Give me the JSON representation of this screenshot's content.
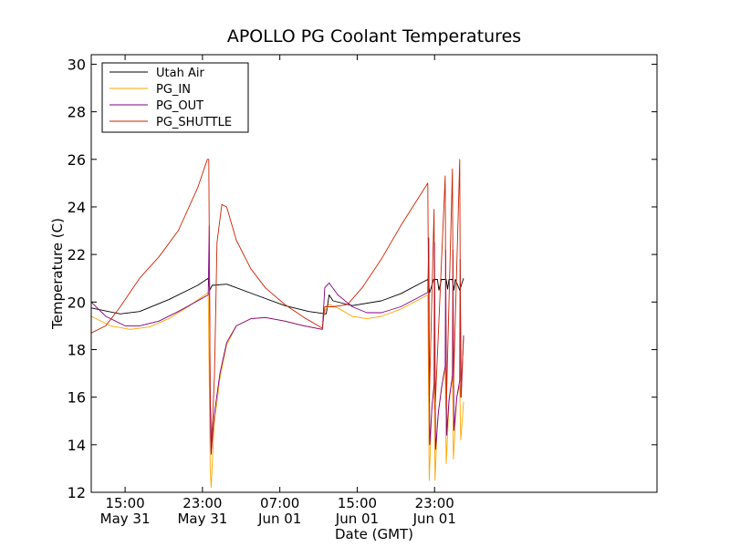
{
  "chart_data": {
    "type": "line",
    "title": "APOLLO PG Coolant Temperatures",
    "xlabel": "Date (GMT)",
    "ylabel": "Temperature (C)",
    "ylim": [
      12,
      30.4
    ],
    "xlim_hours": [
      0,
      58.5
    ],
    "x_unit": "hours since 11:30 May 31 (GMT)",
    "x_ticks": [
      {
        "x": 3.5,
        "time": "15:00",
        "date": "May 31"
      },
      {
        "x": 11.5,
        "time": "23:00",
        "date": "May 31"
      },
      {
        "x": 19.5,
        "time": "07:00",
        "date": "Jun 01"
      },
      {
        "x": 27.5,
        "time": "15:00",
        "date": "Jun 01"
      },
      {
        "x": 35.5,
        "time": "23:00",
        "date": "Jun 01"
      }
    ],
    "y_ticks": [
      12,
      14,
      16,
      18,
      20,
      22,
      24,
      26,
      28,
      30
    ],
    "legend_position": "top-left",
    "series": [
      {
        "name": "Utah Air",
        "color": "#000000",
        "points": [
          [
            0,
            19.75
          ],
          [
            3,
            19.5
          ],
          [
            5,
            19.6
          ],
          [
            8,
            20.1
          ],
          [
            11,
            20.7
          ],
          [
            12.1,
            21.0
          ],
          [
            12.25,
            20.5
          ],
          [
            12.5,
            20.7
          ],
          [
            14,
            20.75
          ],
          [
            17,
            20.3
          ],
          [
            20,
            19.85
          ],
          [
            22.5,
            19.6
          ],
          [
            24.3,
            19.5
          ],
          [
            24.6,
            20.3
          ],
          [
            25,
            20.05
          ],
          [
            27,
            19.85
          ],
          [
            30,
            20.05
          ],
          [
            32,
            20.35
          ],
          [
            34.8,
            20.95
          ],
          [
            35,
            20.4
          ],
          [
            35.4,
            20.95
          ],
          [
            35.8,
            20.95
          ],
          [
            35.95,
            20.5
          ],
          [
            36.2,
            20.95
          ],
          [
            36.7,
            20.95
          ],
          [
            36.85,
            20.55
          ],
          [
            37,
            20.95
          ],
          [
            37.35,
            20.95
          ],
          [
            37.5,
            20.5
          ],
          [
            37.65,
            20.95
          ],
          [
            38.1,
            20.5
          ],
          [
            38.5,
            21.0
          ]
        ]
      },
      {
        "name": "PG_IN",
        "color": "#ffa500",
        "points": [
          [
            0,
            19.4
          ],
          [
            2,
            19.0
          ],
          [
            4,
            18.85
          ],
          [
            6,
            18.95
          ],
          [
            8,
            19.3
          ],
          [
            10,
            19.8
          ],
          [
            12.1,
            20.4
          ],
          [
            12.3,
            13.0
          ],
          [
            12.4,
            12.2
          ],
          [
            12.7,
            14.8
          ],
          [
            13.3,
            16.8
          ],
          [
            14,
            18.2
          ],
          [
            15,
            19.0
          ],
          [
            16.5,
            19.3
          ],
          [
            18,
            19.35
          ],
          [
            20,
            19.2
          ],
          [
            22,
            19.0
          ],
          [
            23.9,
            18.85
          ],
          [
            24.1,
            19.6
          ],
          [
            24.6,
            19.9
          ],
          [
            25.5,
            19.75
          ],
          [
            27,
            19.4
          ],
          [
            28.5,
            19.3
          ],
          [
            30,
            19.4
          ],
          [
            32,
            19.7
          ],
          [
            34.8,
            20.3
          ],
          [
            34.95,
            12.5
          ],
          [
            35.2,
            15.5
          ],
          [
            35.45,
            16.6
          ],
          [
            35.55,
            12.5
          ],
          [
            35.8,
            15.0
          ],
          [
            36.2,
            16.4
          ],
          [
            36.6,
            17.2
          ],
          [
            36.7,
            13.2
          ],
          [
            37.0,
            15.8
          ],
          [
            37.35,
            16.9
          ],
          [
            37.45,
            13.4
          ],
          [
            37.8,
            16.0
          ],
          [
            38.1,
            16.5
          ],
          [
            38.2,
            14.2
          ],
          [
            38.5,
            15.8
          ]
        ]
      },
      {
        "name": "PG_OUT",
        "color": "#800080",
        "points": [
          [
            0,
            20.0
          ],
          [
            1.5,
            19.4
          ],
          [
            3.5,
            19.0
          ],
          [
            5,
            19.0
          ],
          [
            7,
            19.2
          ],
          [
            9,
            19.6
          ],
          [
            12.1,
            20.3
          ],
          [
            12.2,
            23.2
          ],
          [
            12.3,
            15.5
          ],
          [
            12.4,
            13.6
          ],
          [
            12.7,
            15.2
          ],
          [
            13.3,
            17.0
          ],
          [
            14,
            18.3
          ],
          [
            15,
            19.0
          ],
          [
            16.5,
            19.3
          ],
          [
            18,
            19.35
          ],
          [
            20,
            19.2
          ],
          [
            22,
            19.0
          ],
          [
            23.9,
            18.85
          ],
          [
            24.15,
            20.6
          ],
          [
            24.6,
            20.8
          ],
          [
            25.5,
            20.3
          ],
          [
            27,
            19.8
          ],
          [
            28.5,
            19.55
          ],
          [
            30,
            19.55
          ],
          [
            32,
            19.8
          ],
          [
            34.8,
            20.4
          ],
          [
            34.9,
            22.7
          ],
          [
            35.0,
            14.0
          ],
          [
            35.25,
            15.7
          ],
          [
            35.45,
            16.5
          ],
          [
            35.5,
            22.5
          ],
          [
            35.6,
            13.8
          ],
          [
            35.9,
            15.4
          ],
          [
            36.3,
            16.6
          ],
          [
            36.6,
            17.3
          ],
          [
            36.65,
            22.2
          ],
          [
            36.75,
            14.4
          ],
          [
            37.0,
            15.9
          ],
          [
            37.35,
            16.9
          ],
          [
            37.4,
            22.2
          ],
          [
            37.5,
            14.6
          ],
          [
            37.8,
            16.0
          ],
          [
            38.1,
            16.7
          ],
          [
            38.15,
            21.8
          ],
          [
            38.25,
            16.0
          ],
          [
            38.5,
            18.6
          ]
        ]
      },
      {
        "name": "PG_SHUTTLE",
        "color": "#cc2200",
        "points": [
          [
            0,
            18.7
          ],
          [
            1.5,
            19.0
          ],
          [
            3,
            19.8
          ],
          [
            5,
            21.0
          ],
          [
            7,
            21.9
          ],
          [
            9,
            23.0
          ],
          [
            11,
            24.8
          ],
          [
            12.0,
            26.0
          ],
          [
            12.15,
            26.0
          ],
          [
            12.3,
            16.0
          ],
          [
            12.45,
            14.0
          ],
          [
            12.75,
            17.0
          ],
          [
            13.0,
            22.5
          ],
          [
            13.5,
            24.1
          ],
          [
            14,
            24.0
          ],
          [
            15,
            22.6
          ],
          [
            16.5,
            21.4
          ],
          [
            18,
            20.6
          ],
          [
            20,
            19.9
          ],
          [
            22,
            19.35
          ],
          [
            23.9,
            18.9
          ],
          [
            24.15,
            19.8
          ],
          [
            25,
            19.8
          ],
          [
            26.5,
            19.9
          ],
          [
            28,
            20.6
          ],
          [
            30,
            21.8
          ],
          [
            32,
            23.2
          ],
          [
            34.8,
            25.0
          ],
          [
            34.95,
            15.8
          ],
          [
            35.45,
            23.9
          ],
          [
            35.55,
            15.5
          ],
          [
            36.6,
            25.3
          ],
          [
            36.7,
            15.5
          ],
          [
            37.35,
            25.6
          ],
          [
            37.45,
            16.4
          ],
          [
            38.1,
            26.0
          ],
          [
            38.2,
            16.0
          ],
          [
            38.5,
            18.5
          ]
        ]
      }
    ]
  }
}
